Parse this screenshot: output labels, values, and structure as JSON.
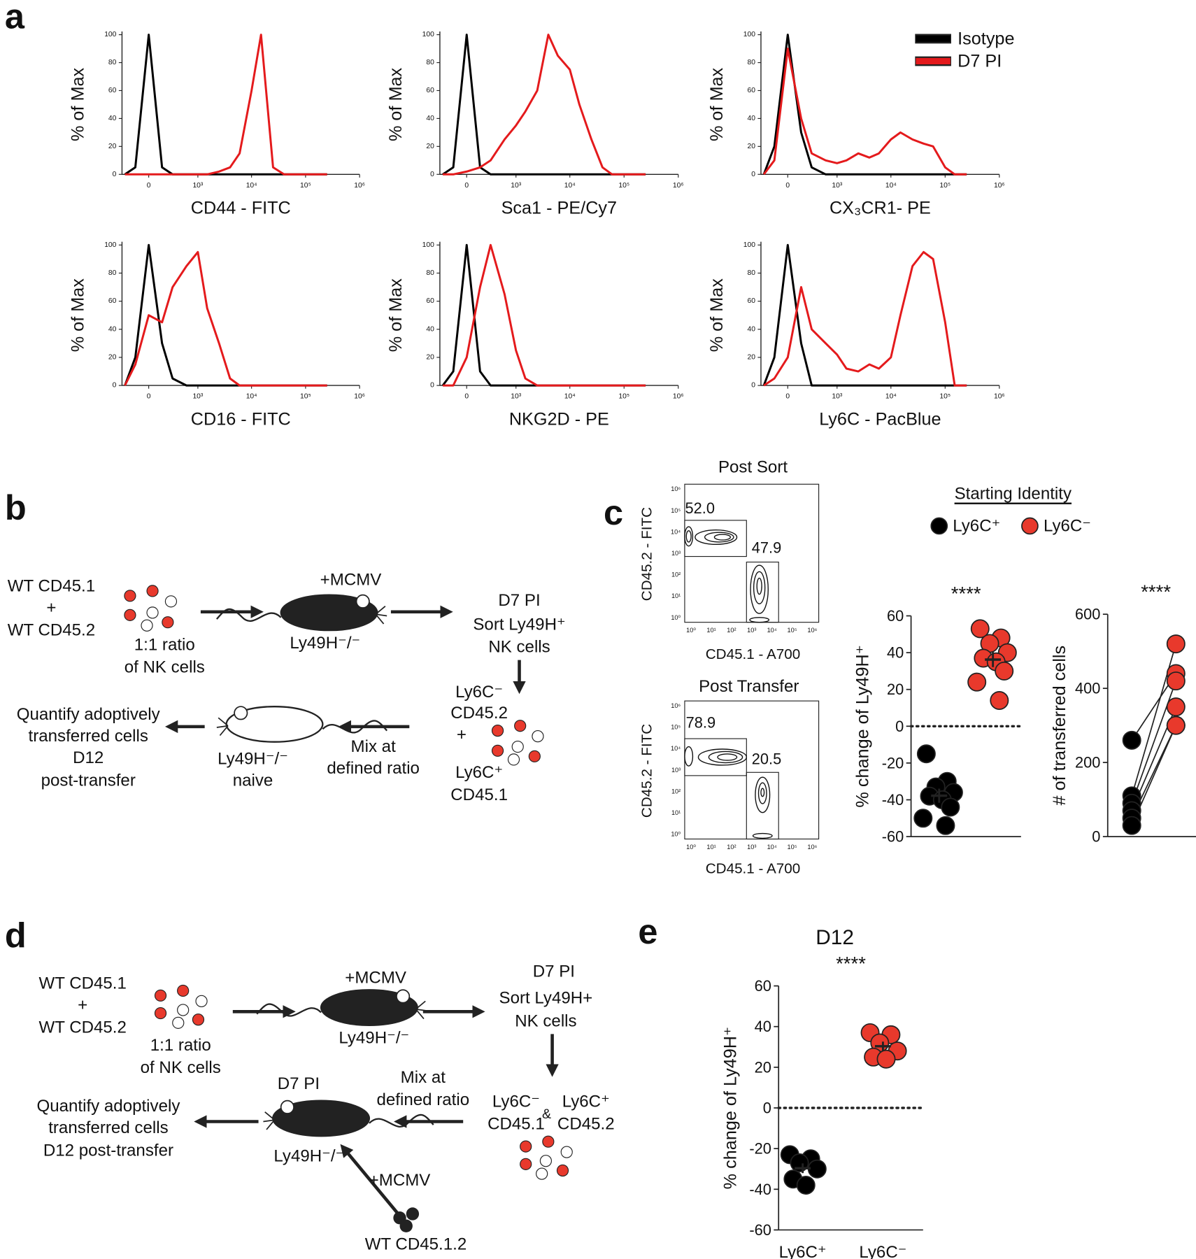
{
  "panel_labels": [
    "a",
    "b",
    "c",
    "d",
    "e"
  ],
  "chart_data": [
    {
      "type": "line",
      "ylabel": "% of Max",
      "xlabel": "CD44 - FITC",
      "xscale": "biexponential",
      "x": [
        -300,
        -150,
        0,
        150,
        300,
        600,
        1000,
        1500,
        2500,
        4000,
        6000,
        10000,
        15000,
        25000,
        40000,
        60000,
        100000,
        150000,
        250000
      ],
      "series": [
        {
          "color": "#000000",
          "values": [
            0,
            5,
            100,
            5,
            0,
            0,
            0,
            0,
            0,
            0,
            0,
            0,
            0,
            0,
            0,
            0,
            0,
            0,
            0
          ]
        },
        {
          "color": "#e41a1c",
          "values": [
            0,
            0,
            0,
            0,
            0,
            0,
            0,
            0,
            2,
            5,
            15,
            60,
            100,
            5,
            0,
            0,
            0,
            0,
            0
          ]
        }
      ],
      "xlim": [
        -350,
        1000000
      ],
      "ylim": [
        0,
        100
      ],
      "xticks": [
        0,
        {
          "value": 1000,
          "label": "10³"
        },
        {
          "value": 10000,
          "label": "10⁴"
        },
        {
          "value": 100000,
          "label": "10⁵"
        },
        {
          "value": 1000000,
          "label": "10⁶"
        }
      ],
      "yticks": [
        0,
        20,
        40,
        60,
        80,
        100
      ]
    },
    {
      "type": "line",
      "ylabel": "% of Max",
      "xlabel": "Sca1 - PE/Cy7",
      "xscale": "biexponential",
      "x": [
        -300,
        -150,
        0,
        150,
        300,
        600,
        1000,
        1500,
        2500,
        4000,
        6000,
        10000,
        15000,
        25000,
        40000,
        60000,
        100000,
        150000,
        250000
      ],
      "series": [
        {
          "color": "#000000",
          "values": [
            0,
            5,
            100,
            5,
            0,
            0,
            0,
            0,
            0,
            0,
            0,
            0,
            0,
            0,
            0,
            0,
            0,
            0,
            0
          ]
        },
        {
          "color": "#e41a1c",
          "values": [
            0,
            0,
            2,
            5,
            10,
            25,
            35,
            45,
            60,
            100,
            85,
            75,
            50,
            25,
            5,
            0,
            0,
            0,
            0
          ]
        }
      ],
      "xlim": [
        -350,
        1000000
      ],
      "ylim": [
        0,
        100
      ],
      "xticks": [
        0,
        {
          "value": 1000,
          "label": "10³"
        },
        {
          "value": 10000,
          "label": "10⁴"
        },
        {
          "value": 100000,
          "label": "10⁵"
        },
        {
          "value": 1000000,
          "label": "10⁶"
        }
      ],
      "yticks": [
        0,
        20,
        40,
        60,
        80,
        100
      ]
    },
    {
      "type": "line",
      "ylabel": "% of Max",
      "xlabel": "CX₃CR1- PE",
      "xscale": "biexponential",
      "legend": "upper right",
      "x": [
        -300,
        -150,
        0,
        150,
        300,
        600,
        1000,
        1500,
        2500,
        4000,
        6000,
        10000,
        15000,
        25000,
        40000,
        60000,
        100000,
        150000,
        250000
      ],
      "series": [
        {
          "name": "Isotype",
          "color": "#000000",
          "values": [
            0,
            20,
            100,
            30,
            5,
            0,
            0,
            0,
            0,
            0,
            0,
            0,
            0,
            0,
            0,
            0,
            0,
            0,
            0
          ]
        },
        {
          "name": "D7 PI",
          "color": "#e41a1c",
          "values": [
            0,
            10,
            90,
            40,
            15,
            10,
            8,
            10,
            15,
            12,
            15,
            25,
            30,
            25,
            22,
            20,
            5,
            0,
            0
          ]
        }
      ],
      "xlim": [
        -350,
        1000000
      ],
      "ylim": [
        0,
        100
      ],
      "xticks": [
        0,
        {
          "value": 1000,
          "label": "10³"
        },
        {
          "value": 10000,
          "label": "10⁴"
        },
        {
          "value": 100000,
          "label": "10⁵"
        },
        {
          "value": 1000000,
          "label": "10⁶"
        }
      ],
      "yticks": [
        0,
        20,
        40,
        60,
        80,
        100
      ]
    },
    {
      "type": "line",
      "ylabel": "% of Max",
      "xlabel": "CD16 - FITC",
      "xscale": "biexponential",
      "x": [
        -300,
        -150,
        0,
        150,
        300,
        600,
        1000,
        1500,
        2500,
        4000,
        6000,
        10000,
        15000,
        25000,
        40000,
        60000,
        100000,
        150000,
        250000
      ],
      "series": [
        {
          "color": "#000000",
          "values": [
            0,
            20,
            100,
            30,
            5,
            0,
            0,
            0,
            0,
            0,
            0,
            0,
            0,
            0,
            0,
            0,
            0,
            0,
            0
          ]
        },
        {
          "color": "#e41a1c",
          "values": [
            0,
            15,
            50,
            45,
            70,
            85,
            95,
            55,
            30,
            5,
            0,
            0,
            0,
            0,
            0,
            0,
            0,
            0,
            0
          ]
        }
      ],
      "xlim": [
        -350,
        1000000
      ],
      "ylim": [
        0,
        100
      ],
      "xticks": [
        0,
        {
          "value": 1000,
          "label": "10³"
        },
        {
          "value": 10000,
          "label": "10⁴"
        },
        {
          "value": 100000,
          "label": "10⁵"
        },
        {
          "value": 1000000,
          "label": "10⁶"
        }
      ],
      "yticks": [
        0,
        20,
        40,
        60,
        80,
        100
      ]
    },
    {
      "type": "line",
      "ylabel": "% of Max",
      "xlabel": "NKG2D - PE",
      "xscale": "biexponential",
      "x": [
        -300,
        -150,
        0,
        150,
        300,
        600,
        1000,
        1500,
        2500,
        4000,
        6000,
        10000,
        15000,
        25000,
        40000,
        60000,
        100000,
        150000,
        250000
      ],
      "series": [
        {
          "color": "#000000",
          "values": [
            0,
            10,
            100,
            10,
            0,
            0,
            0,
            0,
            0,
            0,
            0,
            0,
            0,
            0,
            0,
            0,
            0,
            0,
            0
          ]
        },
        {
          "color": "#e41a1c",
          "values": [
            0,
            0,
            20,
            70,
            100,
            65,
            25,
            5,
            0,
            0,
            0,
            0,
            0,
            0,
            0,
            0,
            0,
            0,
            0
          ]
        }
      ],
      "xlim": [
        -350,
        1000000
      ],
      "ylim": [
        0,
        100
      ],
      "xticks": [
        0,
        {
          "value": 1000,
          "label": "10³"
        },
        {
          "value": 10000,
          "label": "10⁴"
        },
        {
          "value": 100000,
          "label": "10⁵"
        },
        {
          "value": 1000000,
          "label": "10⁶"
        }
      ],
      "yticks": [
        0,
        20,
        40,
        60,
        80,
        100
      ]
    },
    {
      "type": "line",
      "ylabel": "% of Max",
      "xlabel": "Ly6C - PacBlue",
      "xscale": "biexponential",
      "x": [
        -300,
        -150,
        0,
        150,
        300,
        600,
        1000,
        1500,
        2500,
        4000,
        6000,
        10000,
        15000,
        25000,
        40000,
        60000,
        100000,
        150000,
        250000
      ],
      "series": [
        {
          "color": "#000000",
          "values": [
            0,
            20,
            100,
            30,
            0,
            0,
            0,
            0,
            0,
            0,
            0,
            0,
            0,
            0,
            0,
            0,
            0,
            0,
            0
          ]
        },
        {
          "color": "#e41a1c",
          "values": [
            0,
            5,
            20,
            70,
            40,
            30,
            22,
            12,
            10,
            15,
            12,
            20,
            50,
            85,
            95,
            90,
            45,
            0,
            0
          ]
        }
      ],
      "xlim": [
        -350,
        1000000
      ],
      "ylim": [
        0,
        100
      ],
      "xticks": [
        0,
        {
          "value": 1000,
          "label": "10³"
        },
        {
          "value": 10000,
          "label": "10⁴"
        },
        {
          "value": 100000,
          "label": "10⁵"
        },
        {
          "value": 1000000,
          "label": "10⁶"
        }
      ],
      "yticks": [
        0,
        20,
        40,
        60,
        80,
        100
      ]
    },
    {
      "type": "strip",
      "ylabel": "% change of Ly49H⁺",
      "annotation": "****",
      "legend_title": "Starting Identity",
      "series": [
        {
          "name": "Ly6C⁺",
          "color": "#000000",
          "values": [
            -15,
            -30,
            -33,
            -36,
            -38,
            -40,
            -44,
            -50,
            -54
          ]
        },
        {
          "name": "Ly6C⁻",
          "color": "#e8392c",
          "values": [
            53,
            48,
            45,
            40,
            37,
            35,
            30,
            24,
            14
          ]
        }
      ],
      "ylim": [
        -60,
        60
      ],
      "yticks": [
        -60,
        -40,
        -20,
        0,
        20,
        40,
        60
      ],
      "hline": 0
    },
    {
      "type": "paired",
      "ylabel": "# of transferred cells",
      "annotation": "****",
      "series": [
        {
          "color": "#000000",
          "values": [
            260,
            110,
            90,
            70,
            50,
            30
          ]
        },
        {
          "color": "#e8392c",
          "values": [
            440,
            520,
            420,
            350,
            300,
            300
          ]
        }
      ],
      "ylim": [
        0,
        600
      ],
      "yticks": [
        0,
        200,
        400,
        600
      ]
    },
    {
      "type": "strip",
      "title": "D12",
      "ylabel": "% change of Ly49H⁺",
      "annotation": "****",
      "categories": [
        "Ly6C⁺",
        "Ly6C⁻"
      ],
      "series": [
        {
          "color": "#000000",
          "values": [
            -23,
            -25,
            -27,
            -30,
            -35,
            -38
          ]
        },
        {
          "color": "#e8392c",
          "values": [
            37,
            36,
            32,
            28,
            25,
            24
          ]
        }
      ],
      "ylim": [
        -60,
        60
      ],
      "yticks": [
        -60,
        -40,
        -20,
        0,
        20,
        40,
        60
      ],
      "hline": 0
    }
  ],
  "flow_panels": [
    {
      "title": "Post Sort",
      "ylabel": "CD45.2 - FITC",
      "xlabel": "CD45.1 - A700",
      "gates": [
        "52.0",
        "47.9"
      ],
      "ticks": [
        "10⁰",
        "10¹",
        "10²",
        "10³",
        "10⁴",
        "10⁵",
        "10⁶"
      ]
    },
    {
      "title": "Post Transfer",
      "ylabel": "CD45.2 - FITC",
      "xlabel": "CD45.1 - A700",
      "gates": [
        "78.9",
        "20.5"
      ],
      "ticks": [
        "10⁰",
        "10¹",
        "10²",
        "10³",
        "10⁴",
        "10⁵",
        "10⁶"
      ]
    }
  ],
  "diagram_b": [
    "WT CD45.1",
    "+",
    "WT CD45.2",
    "1:1 ratio",
    "of NK cells",
    "+MCMV",
    "Ly49H⁻/⁻",
    "D7 PI",
    "Sort Ly49H⁺",
    "NK cells",
    "Ly6C⁻",
    "CD45.2",
    "+",
    "Ly6C⁺",
    "CD45.1",
    "Mix at",
    "defined ratio",
    "Ly49H⁻/⁻",
    "naive",
    "Quantify adoptively",
    "transferred cells",
    "D12",
    "post-transfer"
  ],
  "diagram_d": [
    "WT CD45.1",
    "+",
    "WT CD45.2",
    "1:1 ratio",
    "of NK cells",
    "+MCMV",
    "Ly49H⁻/⁻",
    "D7 PI",
    "Sort Ly49H+",
    "NK cells",
    "Ly6C⁻",
    "&",
    "Ly6C⁺",
    "CD45.1",
    "CD45.2",
    "Mix at",
    "defined ratio",
    "D7 PI",
    "Ly49H⁻/⁻",
    "Quantify adoptively",
    "transferred cells",
    "D12 post-transfer",
    "+MCMV",
    "WT CD45.1.2"
  ]
}
